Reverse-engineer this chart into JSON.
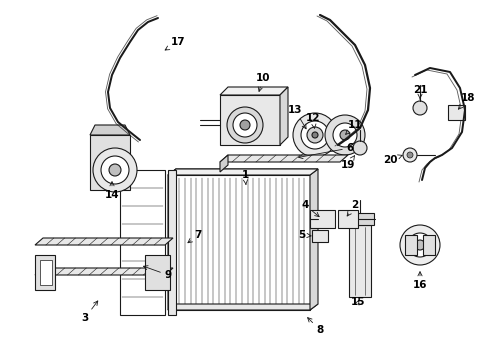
{
  "bg_color": "#ffffff",
  "line_color": "#1a1a1a",
  "label_color": "#000000",
  "figsize": [
    4.89,
    3.6
  ],
  "dpi": 100,
  "font_size": 7.5
}
